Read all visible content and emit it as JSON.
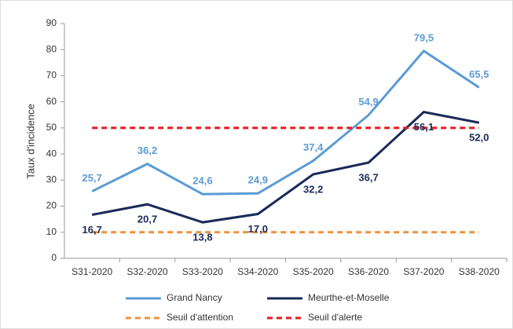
{
  "chart_data": {
    "type": "line",
    "categories": [
      "S31-2020",
      "S32-2020",
      "S33-2020",
      "S34-2020",
      "S35-2020",
      "S36-2020",
      "S37-2020",
      "S38-2020"
    ],
    "y_label": "Taux d'incidence",
    "ylim": [
      0,
      90
    ],
    "yticks": [
      0,
      10,
      20,
      30,
      40,
      50,
      60,
      70,
      80,
      90
    ],
    "grid": false,
    "legend": "bottom",
    "series": [
      {
        "name": "Grand Nancy",
        "color": "#5b9bd5",
        "values": [
          25.7,
          36.2,
          24.6,
          24.9,
          37.4,
          54.9,
          79.5,
          65.5
        ],
        "value_labels": [
          "25,7",
          "36,2",
          "24,6",
          "24,9",
          "37,4",
          "54,9",
          "79,5",
          "65,5"
        ],
        "label_position": "above"
      },
      {
        "name": "Meurthe-et-Moselle",
        "color": "#1a2a5a",
        "values": [
          16.7,
          20.7,
          13.8,
          17.0,
          32.2,
          36.7,
          56.1,
          52.0
        ],
        "value_labels": [
          "16,7",
          "20,7",
          "13,8",
          "17,0",
          "32,2",
          "36,7",
          "56,1",
          "52,0"
        ],
        "label_position": "below"
      },
      {
        "name": "Seuil d'attention",
        "color": "#f0913a",
        "dashed": true,
        "values": [
          10,
          10,
          10,
          10,
          10,
          10,
          10,
          10
        ]
      },
      {
        "name": "Seuil d'alerte",
        "color": "#e41a1c",
        "dashed": true,
        "values": [
          50,
          50,
          50,
          50,
          50,
          50,
          50,
          50
        ]
      }
    ]
  }
}
